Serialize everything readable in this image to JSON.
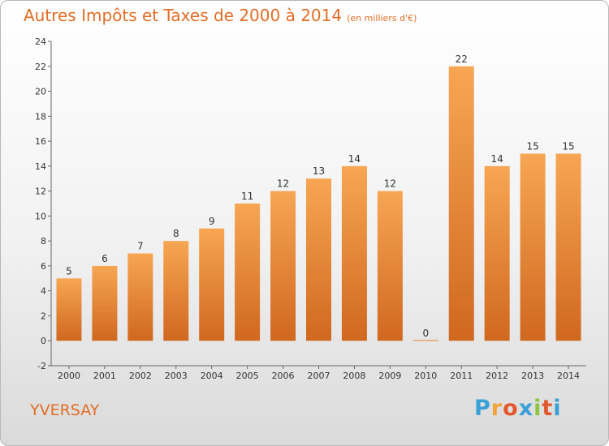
{
  "chart_data": {
    "type": "bar",
    "title": "Autres Impôts et Taxes de 2000 à 2014",
    "unit_label": "(en milliers d'€)",
    "categories": [
      "2000",
      "2001",
      "2002",
      "2003",
      "2004",
      "2005",
      "2006",
      "2007",
      "2008",
      "2009",
      "2010",
      "2011",
      "2012",
      "2013",
      "2014"
    ],
    "values": [
      5,
      6,
      7,
      8,
      9,
      11,
      12,
      13,
      14,
      12,
      0,
      22,
      14,
      15,
      15
    ],
    "y_ticks": [
      -2,
      0,
      2,
      4,
      6,
      8,
      10,
      12,
      14,
      16,
      18,
      20,
      22,
      24
    ],
    "ylim": [
      -2,
      24
    ],
    "xlabel": "",
    "ylabel": "",
    "bar_color": "#f2913f",
    "grid": false,
    "legend": "none"
  },
  "location": "YVERSAY",
  "logo": {
    "letters": [
      "P",
      "r",
      "o",
      "x",
      "i",
      "t",
      "i"
    ],
    "colors": [
      "#3aa0d8",
      "#f2a33a",
      "#e3572d",
      "#3aa0d8",
      "#8dc63f",
      "#e3572d",
      "#3aa0d8"
    ]
  }
}
